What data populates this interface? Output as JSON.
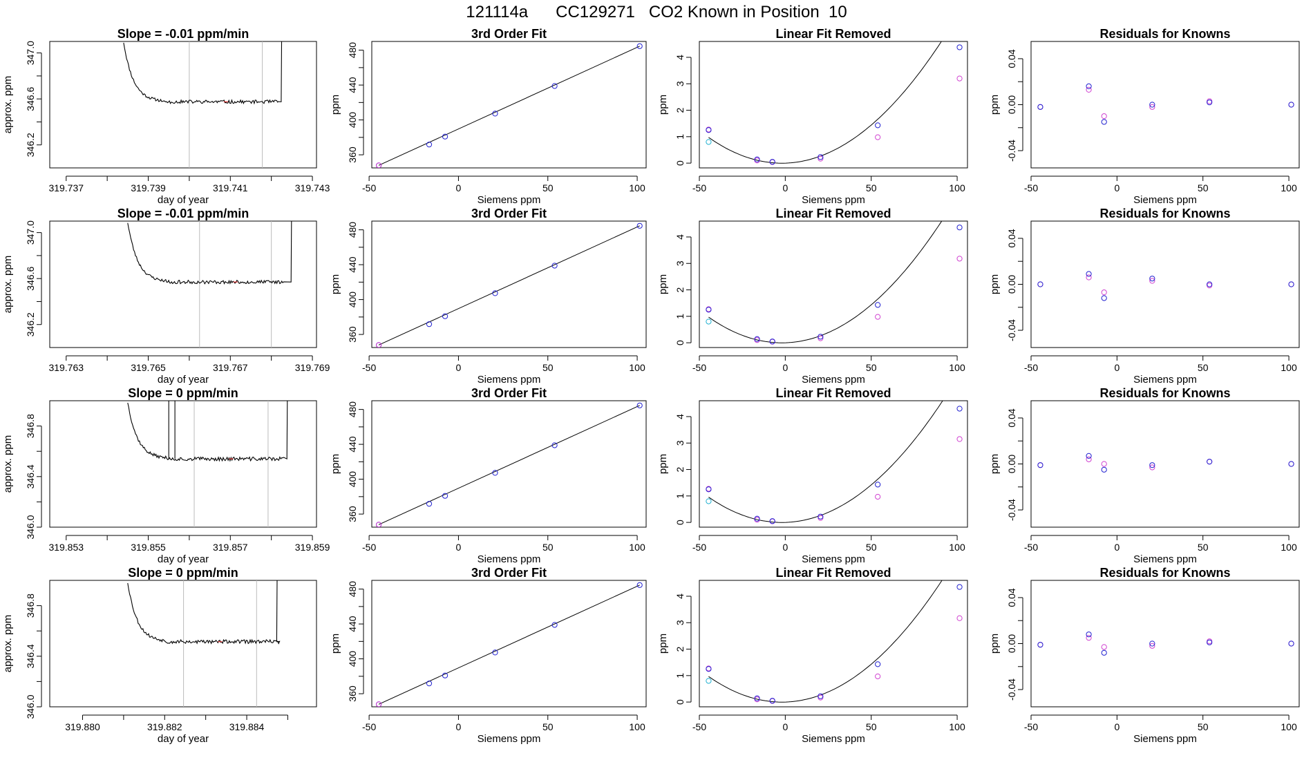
{
  "page": {
    "title": "121114a      CC129271   CO2 Known in Position  10"
  },
  "colors": {
    "line": "#000000",
    "blue": "#2020d0",
    "magenta": "#d040d0",
    "cyan": "#20b0d0",
    "red": "#e03030",
    "vline": "#bbbbbb"
  },
  "chart_data": [
    {
      "type": "line",
      "row": 0,
      "col": 0,
      "title": "Slope =  -0.01  ppm/min",
      "xlabel": "day of year",
      "ylabel": "approx. ppm",
      "xlim": [
        319.7366,
        319.7431
      ],
      "ylim": [
        346.0,
        347.1
      ],
      "xticks": [
        319.737,
        319.739,
        319.741,
        319.743
      ],
      "xtick_labels": [
        "319.737",
        "319.739",
        "319.741",
        "319.743"
      ],
      "xminor": [
        319.738,
        319.74,
        319.742
      ],
      "yticks": [
        346.2,
        346.6,
        347.0
      ],
      "ytick_labels": [
        "346.2",
        "346.6",
        "347.0"
      ],
      "yminor": [
        346.4,
        346.8
      ],
      "vlines": [
        319.74,
        319.74178
      ],
      "trace": {
        "x0": 319.7384,
        "x1": 319.7422,
        "rise_x": 319.74224,
        "floor": 346.58,
        "level": 346.575,
        "start": 347.1,
        "seed": 11
      }
    },
    {
      "type": "scatter",
      "row": 0,
      "col": 1,
      "title": "3rd Order Fit",
      "xlabel": "Siemens ppm",
      "ylabel": "ppm",
      "xlim": [
        -48.5,
        105
      ],
      "ylim": [
        345,
        490
      ],
      "xticks": [
        -50,
        0,
        50,
        100
      ],
      "xtick_labels": [
        "-50",
        "0",
        "50",
        "100"
      ],
      "yticks": [
        360,
        400,
        440,
        480
      ],
      "ytick_labels": [
        "360",
        "400",
        "440",
        "480"
      ],
      "yminor": [
        380,
        420,
        460
      ],
      "x": [
        -44.6,
        -16.4,
        -7.5,
        20.5,
        53.8,
        101.4
      ],
      "y": [
        347.9,
        371.8,
        380.9,
        407.3,
        438.9,
        484.6
      ],
      "fit_line": {
        "x": [
          -44.6,
          101.4
        ],
        "y": [
          347.9,
          484.6
        ]
      }
    },
    {
      "type": "scatter",
      "row": 0,
      "col": 2,
      "title": "Linear Fit Removed",
      "xlabel": "Siemens ppm",
      "ylabel": "ppm",
      "xlim": [
        -50,
        106
      ],
      "ylim": [
        -0.18,
        4.6
      ],
      "xticks": [
        -50,
        0,
        50,
        100
      ],
      "xtick_labels": [
        "-50",
        "0",
        "50",
        "100"
      ],
      "yticks": [
        0,
        1,
        2,
        3,
        4
      ],
      "ytick_labels": [
        "0",
        "1",
        "2",
        "3",
        "4"
      ],
      "x": [
        -44.6,
        -16.4,
        -7.5,
        20.5,
        53.8,
        101.4
      ],
      "y_blue": [
        1.25,
        0.14,
        0.05,
        0.23,
        1.43,
        4.38
      ],
      "y_magenta": [
        1.27,
        0.1,
        0.04,
        0.17,
        0.98,
        3.2
      ],
      "cyan_point": {
        "x": -44.6,
        "y": 0.8
      },
      "fit_curve": {
        "a": 0.000535,
        "b": 0.00205,
        "c": 0.0
      }
    },
    {
      "type": "scatter",
      "row": 0,
      "col": 3,
      "title": "Residuals for Knowns",
      "xlabel": "Siemens ppm",
      "ylabel": "ppm",
      "xlim": [
        -50,
        106
      ],
      "ylim": [
        -0.055,
        0.055
      ],
      "xticks": [
        -50,
        0,
        50,
        100
      ],
      "xtick_labels": [
        "-50",
        "0",
        "50",
        "100"
      ],
      "yticks": [
        -0.04,
        0.0,
        0.04
      ],
      "ytick_labels": [
        "-0.04",
        "0.00",
        "0.04"
      ],
      "yminor": [
        -0.02,
        0.02
      ],
      "x": [
        -44.6,
        -16.4,
        -7.5,
        20.5,
        53.8,
        101.4
      ],
      "y_blue": [
        -0.002,
        0.016,
        -0.015,
        0.0,
        0.002,
        0.0
      ],
      "y_magenta": [
        -0.002,
        0.013,
        -0.01,
        -0.002,
        0.003,
        0.0
      ]
    },
    {
      "type": "line",
      "row": 1,
      "col": 0,
      "title": "Slope =  -0.01  ppm/min",
      "xlabel": "day of year",
      "ylabel": "approx. ppm",
      "xlim": [
        319.7626,
        319.7691
      ],
      "ylim": [
        346.0,
        347.1
      ],
      "xticks": [
        319.763,
        319.765,
        319.767,
        319.769
      ],
      "xtick_labels": [
        "319.763",
        "319.765",
        "319.767",
        "319.769"
      ],
      "xminor": [
        319.764,
        319.766,
        319.768
      ],
      "yticks": [
        346.2,
        346.6,
        347.0
      ],
      "ytick_labels": [
        "346.2",
        "346.6",
        "347.0"
      ],
      "yminor": [
        346.4,
        346.8
      ],
      "vlines": [
        319.76625,
        319.768
      ],
      "trace": {
        "x0": 319.7645,
        "x1": 319.7683,
        "rise_x": 319.76848,
        "floor": 346.58,
        "level": 346.57,
        "start": 347.1,
        "seed": 23
      }
    },
    {
      "type": "scatter",
      "row": 1,
      "col": 1,
      "title": "3rd Order Fit",
      "xlabel": "Siemens ppm",
      "ylabel": "ppm",
      "xlim": [
        -48.5,
        105
      ],
      "ylim": [
        345,
        490
      ],
      "xticks": [
        -50,
        0,
        50,
        100
      ],
      "xtick_labels": [
        "-50",
        "0",
        "50",
        "100"
      ],
      "yticks": [
        360,
        400,
        440,
        480
      ],
      "ytick_labels": [
        "360",
        "400",
        "440",
        "480"
      ],
      "yminor": [
        380,
        420,
        460
      ],
      "x": [
        -44.6,
        -16.4,
        -7.5,
        20.5,
        53.8,
        101.4
      ],
      "y": [
        347.9,
        371.8,
        380.9,
        407.3,
        438.9,
        484.6
      ],
      "fit_line": {
        "x": [
          -44.6,
          101.4
        ],
        "y": [
          347.9,
          484.6
        ]
      }
    },
    {
      "type": "scatter",
      "row": 1,
      "col": 2,
      "title": "Linear Fit Removed",
      "xlabel": "Siemens ppm",
      "ylabel": "ppm",
      "xlim": [
        -50,
        106
      ],
      "ylim": [
        -0.18,
        4.6
      ],
      "xticks": [
        -50,
        0,
        50,
        100
      ],
      "xtick_labels": [
        "-50",
        "0",
        "50",
        "100"
      ],
      "yticks": [
        0,
        1,
        2,
        3,
        4
      ],
      "ytick_labels": [
        "0",
        "1",
        "2",
        "3",
        "4"
      ],
      "x": [
        -44.6,
        -16.4,
        -7.5,
        20.5,
        53.8,
        101.4
      ],
      "y_blue": [
        1.25,
        0.14,
        0.05,
        0.23,
        1.43,
        4.36
      ],
      "y_magenta": [
        1.27,
        0.1,
        0.04,
        0.17,
        0.98,
        3.18
      ],
      "cyan_point": {
        "x": -44.6,
        "y": 0.8
      },
      "fit_curve": {
        "a": 0.000533,
        "b": 0.00205,
        "c": 0.0
      }
    },
    {
      "type": "scatter",
      "row": 1,
      "col": 3,
      "title": "Residuals for Knowns",
      "xlabel": "Siemens ppm",
      "ylabel": "ppm",
      "xlim": [
        -50,
        106
      ],
      "ylim": [
        -0.055,
        0.055
      ],
      "xticks": [
        -50,
        0,
        50,
        100
      ],
      "xtick_labels": [
        "-50",
        "0",
        "50",
        "100"
      ],
      "yticks": [
        -0.04,
        0.0,
        0.04
      ],
      "ytick_labels": [
        "-0.04",
        "0.00",
        "0.04"
      ],
      "yminor": [
        -0.02,
        0.02
      ],
      "x": [
        -44.6,
        -16.4,
        -7.5,
        20.5,
        53.8,
        101.4
      ],
      "y_blue": [
        0.0,
        0.009,
        -0.012,
        0.005,
        0.0,
        0.0
      ],
      "y_magenta": [
        0.0,
        0.006,
        -0.007,
        0.003,
        -0.001,
        0.0
      ]
    },
    {
      "type": "line",
      "row": 2,
      "col": 0,
      "title": "Slope =  0  ppm/min",
      "xlabel": "day of year",
      "ylabel": "approx. ppm",
      "xlim": [
        319.8526,
        319.8591
      ],
      "ylim": [
        346.0,
        347.0
      ],
      "xticks": [
        319.853,
        319.855,
        319.857,
        319.859
      ],
      "xtick_labels": [
        "319.853",
        "319.855",
        "319.857",
        "319.859"
      ],
      "xminor": [
        319.854,
        319.856,
        319.858
      ],
      "yticks": [
        346.0,
        346.4,
        346.8
      ],
      "ytick_labels": [
        "346.0",
        "346.4",
        "346.8"
      ],
      "yminor": [
        346.2,
        346.6
      ],
      "vlines": [
        319.85612,
        319.85792
      ],
      "spikes": [
        319.8555,
        319.85565
      ],
      "trace": {
        "x0": 319.8545,
        "x1": 319.8583,
        "rise_x": 319.85838,
        "floor": 346.55,
        "level": 346.54,
        "start": 347.0,
        "seed": 37
      }
    },
    {
      "type": "scatter",
      "row": 2,
      "col": 1,
      "title": "3rd Order Fit",
      "xlabel": "Siemens ppm",
      "ylabel": "ppm",
      "xlim": [
        -48.5,
        105
      ],
      "ylim": [
        345,
        490
      ],
      "xticks": [
        -50,
        0,
        50,
        100
      ],
      "xtick_labels": [
        "-50",
        "0",
        "50",
        "100"
      ],
      "yticks": [
        360,
        400,
        440,
        480
      ],
      "ytick_labels": [
        "360",
        "400",
        "440",
        "480"
      ],
      "yminor": [
        380,
        420,
        460
      ],
      "x": [
        -44.6,
        -16.4,
        -7.5,
        20.5,
        53.8,
        101.4
      ],
      "y": [
        347.9,
        371.8,
        380.9,
        407.3,
        438.9,
        484.6
      ],
      "fit_line": {
        "x": [
          -44.6,
          101.4
        ],
        "y": [
          347.9,
          484.6
        ]
      }
    },
    {
      "type": "scatter",
      "row": 2,
      "col": 2,
      "title": "Linear Fit Removed",
      "xlabel": "Siemens ppm",
      "ylabel": "ppm",
      "xlim": [
        -50,
        106
      ],
      "ylim": [
        -0.18,
        4.6
      ],
      "xticks": [
        -50,
        0,
        50,
        100
      ],
      "xtick_labels": [
        "-50",
        "0",
        "50",
        "100"
      ],
      "yticks": [
        0,
        1,
        2,
        3,
        4
      ],
      "ytick_labels": [
        "0",
        "1",
        "2",
        "3",
        "4"
      ],
      "x": [
        -44.6,
        -16.4,
        -7.5,
        20.5,
        53.8,
        101.4
      ],
      "y_blue": [
        1.25,
        0.14,
        0.05,
        0.22,
        1.43,
        4.3
      ],
      "y_magenta": [
        1.27,
        0.1,
        0.04,
        0.17,
        0.97,
        3.15
      ],
      "cyan_point": {
        "x": -44.6,
        "y": 0.8
      },
      "fit_curve": {
        "a": 0.000526,
        "b": 0.00205,
        "c": 0.0
      }
    },
    {
      "type": "scatter",
      "row": 2,
      "col": 3,
      "title": "Residuals for Knowns",
      "xlabel": "Siemens ppm",
      "ylabel": "ppm",
      "xlim": [
        -50,
        106
      ],
      "ylim": [
        -0.055,
        0.055
      ],
      "xticks": [
        -50,
        0,
        50,
        100
      ],
      "xtick_labels": [
        "-50",
        "0",
        "50",
        "100"
      ],
      "yticks": [
        -0.04,
        0.0,
        0.04
      ],
      "ytick_labels": [
        "-0.04",
        "0.00",
        "0.04"
      ],
      "yminor": [
        -0.02,
        0.02
      ],
      "x": [
        -44.6,
        -16.4,
        -7.5,
        20.5,
        53.8,
        101.4
      ],
      "y_blue": [
        -0.001,
        0.007,
        -0.005,
        -0.001,
        0.002,
        0.0
      ],
      "y_magenta": [
        -0.001,
        0.004,
        0.0,
        -0.003,
        0.002,
        0.0
      ]
    },
    {
      "type": "line",
      "row": 3,
      "col": 0,
      "title": "Slope =  0  ppm/min",
      "xlabel": "day of year",
      "ylabel": "approx. ppm",
      "xlim": [
        319.8792,
        319.8857
      ],
      "ylim": [
        346.0,
        347.0
      ],
      "xticks": [
        319.88,
        319.882,
        319.884
      ],
      "xtick_labels": [
        "319.880",
        "319.882",
        "319.884"
      ],
      "xminor": [
        319.881,
        319.883,
        319.885
      ],
      "yticks": [
        346.0,
        346.4,
        346.8
      ],
      "ytick_labels": [
        "346.0",
        "346.4",
        "346.8"
      ],
      "yminor": [
        346.2,
        346.6
      ],
      "vlines": [
        319.88246,
        319.88424
      ],
      "trace": {
        "x0": 319.8811,
        "x1": 319.8848,
        "rise_x": 319.88473,
        "floor": 346.53,
        "level": 346.515,
        "start": 347.0,
        "seed": 53
      }
    },
    {
      "type": "scatter",
      "row": 3,
      "col": 1,
      "title": "3rd Order Fit",
      "xlabel": "Siemens ppm",
      "ylabel": "ppm",
      "xlim": [
        -48.5,
        105
      ],
      "ylim": [
        345,
        490
      ],
      "xticks": [
        -50,
        0,
        50,
        100
      ],
      "xtick_labels": [
        "-50",
        "0",
        "50",
        "100"
      ],
      "yticks": [
        360,
        400,
        440,
        480
      ],
      "ytick_labels": [
        "360",
        "400",
        "440",
        "480"
      ],
      "yminor": [
        380,
        420,
        460
      ],
      "x": [
        -44.6,
        -16.4,
        -7.5,
        20.5,
        53.8,
        101.4
      ],
      "y": [
        347.9,
        371.8,
        380.9,
        407.3,
        438.9,
        484.6
      ],
      "fit_line": {
        "x": [
          -44.6,
          101.4
        ],
        "y": [
          347.9,
          484.6
        ]
      }
    },
    {
      "type": "scatter",
      "row": 3,
      "col": 2,
      "title": "Linear Fit Removed",
      "xlabel": "Siemens ppm",
      "ylabel": "ppm",
      "xlim": [
        -50,
        106
      ],
      "ylim": [
        -0.18,
        4.6
      ],
      "xticks": [
        -50,
        0,
        50,
        100
      ],
      "xtick_labels": [
        "-50",
        "0",
        "50",
        "100"
      ],
      "yticks": [
        0,
        1,
        2,
        3,
        4
      ],
      "ytick_labels": [
        "0",
        "1",
        "2",
        "3",
        "4"
      ],
      "x": [
        -44.6,
        -16.4,
        -7.5,
        20.5,
        53.8,
        101.4
      ],
      "y_blue": [
        1.25,
        0.14,
        0.05,
        0.22,
        1.43,
        4.35
      ],
      "y_magenta": [
        1.27,
        0.1,
        0.04,
        0.17,
        0.97,
        3.17
      ],
      "cyan_point": {
        "x": -44.6,
        "y": 0.8
      },
      "fit_curve": {
        "a": 0.000531,
        "b": 0.00205,
        "c": 0.0
      }
    },
    {
      "type": "scatter",
      "row": 3,
      "col": 3,
      "title": "Residuals for Knowns",
      "xlabel": "Siemens ppm",
      "ylabel": "ppm",
      "xlim": [
        -50,
        106
      ],
      "ylim": [
        -0.055,
        0.055
      ],
      "xticks": [
        -50,
        0,
        50,
        100
      ],
      "xtick_labels": [
        "-50",
        "0",
        "50",
        "100"
      ],
      "yticks": [
        -0.04,
        0.0,
        0.04
      ],
      "ytick_labels": [
        "-0.04",
        "0.00",
        "0.04"
      ],
      "yminor": [
        -0.02,
        0.02
      ],
      "x": [
        -44.6,
        -16.4,
        -7.5,
        20.5,
        53.8,
        101.4
      ],
      "y_blue": [
        -0.001,
        0.008,
        -0.008,
        0.0,
        0.001,
        0.0
      ],
      "y_magenta": [
        -0.001,
        0.005,
        -0.003,
        -0.002,
        0.002,
        0.0
      ]
    }
  ]
}
